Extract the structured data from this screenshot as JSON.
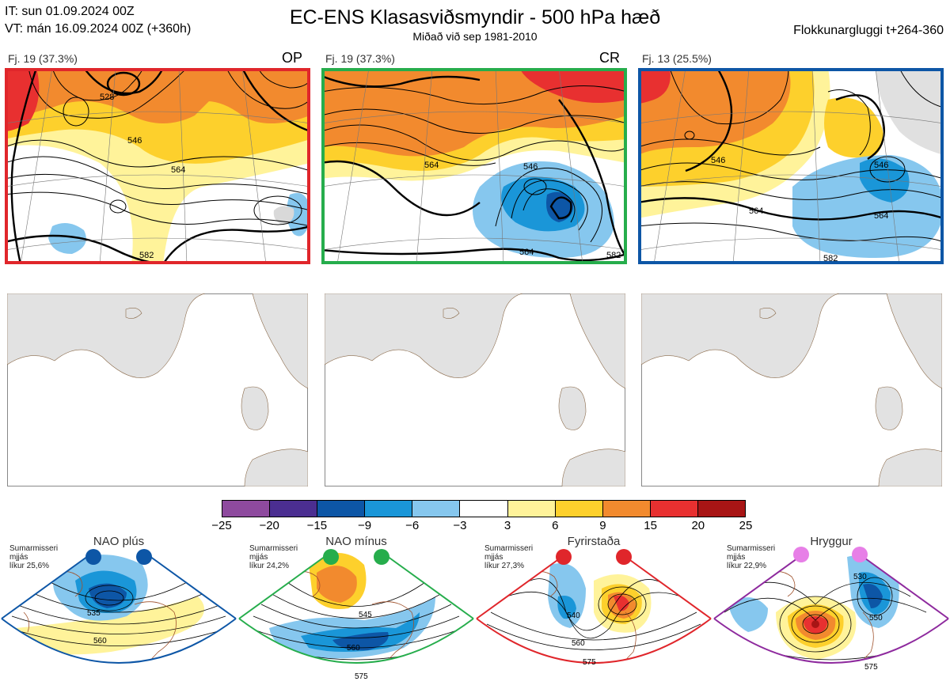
{
  "header": {
    "it": "IT: sun 01.09.2024 00Z",
    "vt": "VT: mán 16.09.2024 00Z  (+360h)",
    "title": "EC-ENS Klasasviðsmyndir - 500 hPa hæð",
    "subtitle": "Miðað við sep 1981-2010",
    "window": "Flokkunargluggi t+264-360"
  },
  "panels": [
    {
      "label": "Fj. 19 (37.3%)",
      "tag": "OP",
      "frame_color": "#e0262b"
    },
    {
      "label": "Fj. 19 (37.3%)",
      "tag": "CR",
      "frame_color": "#26ad4c"
    },
    {
      "label": "Fj. 13 (25.5%)",
      "tag": "",
      "frame_color": "#0d56a6"
    }
  ],
  "contour_labels": {
    "p1": [
      "528",
      "546",
      "564",
      "582"
    ],
    "p2": [
      "564",
      "546",
      "564",
      "582"
    ],
    "p3": [
      "546",
      "546",
      "564",
      "564",
      "582"
    ]
  },
  "colorbar": {
    "ticks": [
      "−25",
      "−20",
      "−15",
      "−9",
      "−6",
      "−3",
      "3",
      "6",
      "9",
      "15",
      "20",
      "25"
    ],
    "colors": [
      "#8e4a9e",
      "#4b2e91",
      "#0d56a6",
      "#1a96d8",
      "#86c7ee",
      "#ffffff",
      "#fff39a",
      "#fdd02c",
      "#f28a2e",
      "#e83030",
      "#a81515"
    ]
  },
  "regimes": [
    {
      "name": "NAO plús",
      "season": "Sumarmisseri",
      "line2": "mjjás",
      "prob": "líkur 25,6%",
      "color": "#0d56a6",
      "labels": [
        "535",
        "560"
      ]
    },
    {
      "name": "NAO mínus",
      "season": "Sumarmisseri",
      "line2": "mjjás",
      "prob": "líkur 24,2%",
      "color": "#26ad4c",
      "labels": [
        "545",
        "560",
        "575"
      ]
    },
    {
      "name": "Fyrirstaða",
      "season": "Sumarmisseri",
      "line2": "mjjás",
      "prob": "líkur 27,3%",
      "color": "#e0262b",
      "labels": [
        "540",
        "560",
        "575"
      ]
    },
    {
      "name": "Hryggur",
      "season": "Sumarmisseri",
      "line2": "mjjás",
      "prob": "líkur 22,9%",
      "color": "#8e2a9e",
      "labels": [
        "530",
        "550",
        "575"
      ]
    }
  ]
}
